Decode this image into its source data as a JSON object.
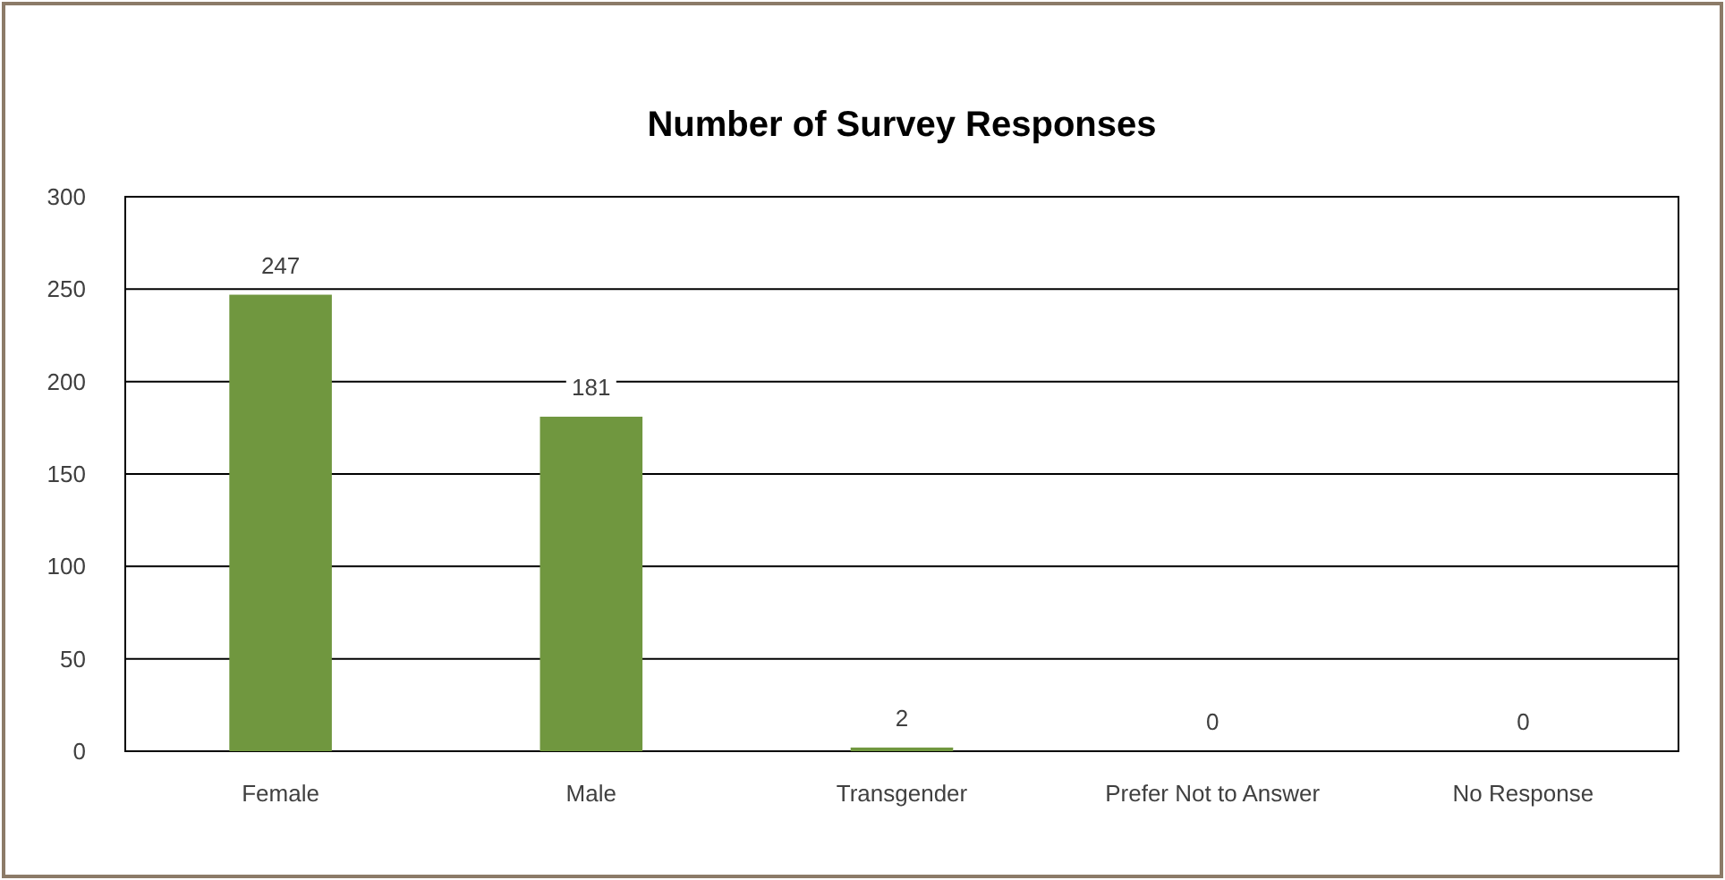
{
  "chart_data": {
    "type": "bar",
    "title": "Number of Survey Responses",
    "categories": [
      "Female",
      "Male",
      "Transgender",
      "Prefer Not to Answer",
      "No Response"
    ],
    "values": [
      247,
      181,
      2,
      0,
      0
    ],
    "color": "#70973f",
    "ylim": [
      0,
      300
    ],
    "yticks": [
      0,
      50,
      100,
      150,
      200,
      250,
      300
    ],
    "grid": "y",
    "data_labels": true
  }
}
